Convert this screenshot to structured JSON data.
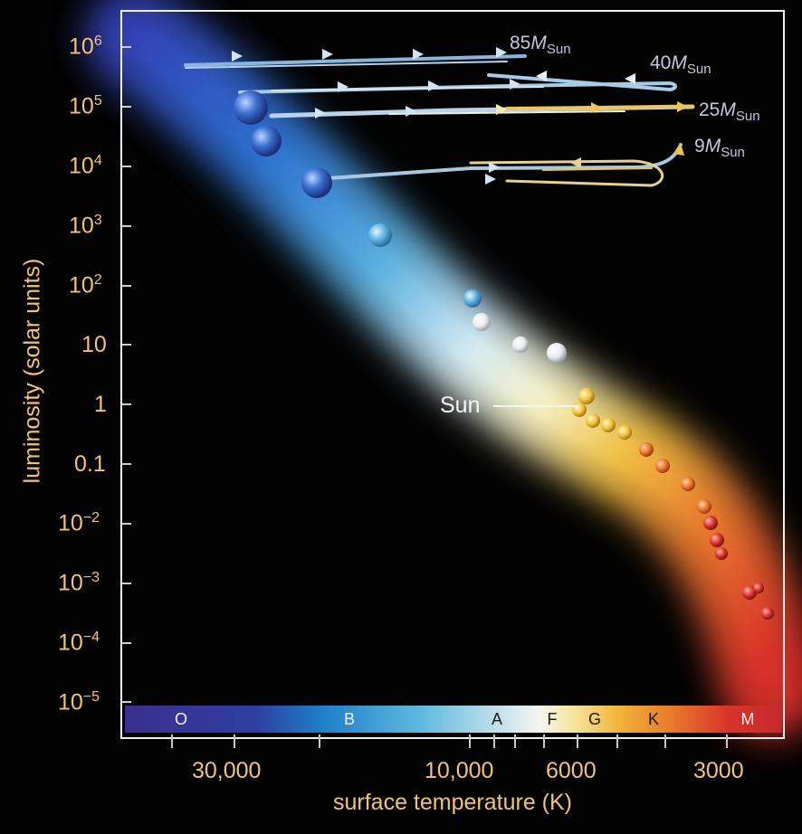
{
  "y_axis": {
    "label": "luminosity (solar units)",
    "ticks": [
      {
        "base": "10",
        "exp": "6"
      },
      {
        "base": "10",
        "exp": "5"
      },
      {
        "base": "10",
        "exp": "4"
      },
      {
        "base": "10",
        "exp": "3"
      },
      {
        "base": "10",
        "exp": "2"
      },
      {
        "base": "10",
        "exp": ""
      },
      {
        "base": "1",
        "exp": ""
      },
      {
        "base": "0.1",
        "exp": ""
      },
      {
        "base": "10",
        "exp": "−2"
      },
      {
        "base": "10",
        "exp": "−3"
      },
      {
        "base": "10",
        "exp": "−4"
      },
      {
        "base": "10",
        "exp": "−5"
      }
    ]
  },
  "x_axis": {
    "label": "surface temperature (K)",
    "ticks": [
      "30,000",
      "10,000",
      "6000",
      "3000"
    ]
  },
  "spectral_classes": [
    "O",
    "B",
    "A",
    "F",
    "G",
    "K",
    "M"
  ],
  "tracks": [
    {
      "mass_number": "85",
      "mass_symbol": "M",
      "mass_sub": "Sun"
    },
    {
      "mass_number": "40",
      "mass_symbol": "M",
      "mass_sub": "Sun"
    },
    {
      "mass_number": "25",
      "mass_symbol": "M",
      "mass_sub": "Sun"
    },
    {
      "mass_number": "9",
      "mass_symbol": "M",
      "mass_sub": "Sun"
    }
  ],
  "sun_label": "Sun",
  "colors": {
    "axis_text": "#f1c27d",
    "background": "#030303",
    "track_label": "#c6c6de",
    "hot_star": "#3b5fd0",
    "cool_star": "#d8332c"
  }
}
